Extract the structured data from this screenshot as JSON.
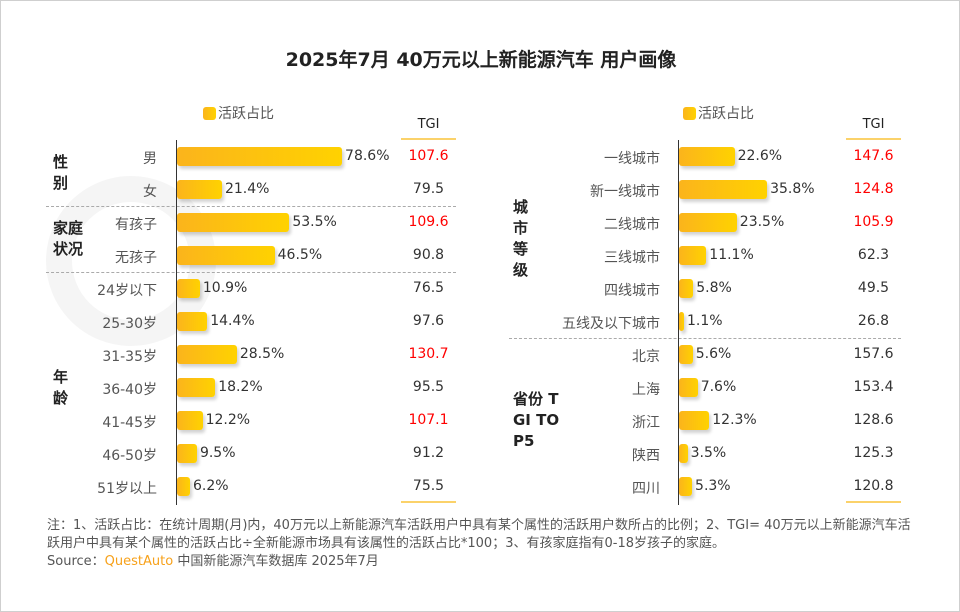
{
  "title": "2025年7月 40万元以上新能源汽车 用户画像",
  "watermark": "QUESTAUTO",
  "legend_label": "活跃占比",
  "tgi_header": "TGI",
  "colors": {
    "bar": "#fbb41c",
    "highlight": "#ff0000",
    "normal": "#333333",
    "brand": "#f7a11a"
  },
  "chart_data": [
    {
      "type": "bar",
      "orientation": "horizontal",
      "legend": "活跃占比",
      "groups": [
        {
          "label": "性别",
          "categories": [
            "男",
            "女"
          ],
          "values": [
            78.6,
            21.4
          ],
          "labels": [
            "78.6%",
            "21.4%"
          ],
          "tgi": [
            "107.6",
            "79.5"
          ],
          "tgi_highlight": [
            true,
            false
          ]
        },
        {
          "label": "家庭状况",
          "categories": [
            "有孩子",
            "无孩子"
          ],
          "values": [
            53.5,
            46.5
          ],
          "labels": [
            "53.5%",
            "46.5%"
          ],
          "tgi": [
            "109.6",
            "90.8"
          ],
          "tgi_highlight": [
            true,
            false
          ]
        },
        {
          "label": "年龄",
          "categories": [
            "24岁以下",
            "25-30岁",
            "31-35岁",
            "36-40岁",
            "41-45岁",
            "46-50岁",
            "51岁以上"
          ],
          "values": [
            10.9,
            14.4,
            28.5,
            18.2,
            12.2,
            9.5,
            6.2
          ],
          "labels": [
            "10.9%",
            "14.4%",
            "28.5%",
            "18.2%",
            "12.2%",
            "9.5%",
            "6.2%"
          ],
          "tgi": [
            "76.5",
            "97.6",
            "130.7",
            "95.5",
            "107.1",
            "91.2",
            "75.5"
          ],
          "tgi_highlight": [
            false,
            false,
            true,
            false,
            true,
            false,
            false
          ]
        }
      ]
    },
    {
      "type": "bar",
      "orientation": "horizontal",
      "legend": "活跃占比",
      "groups": [
        {
          "label": "城市等级",
          "categories": [
            "一线城市",
            "新一线城市",
            "二线城市",
            "三线城市",
            "四线城市",
            "五线及以下城市"
          ],
          "values": [
            22.6,
            35.8,
            23.5,
            11.1,
            5.8,
            1.1
          ],
          "labels": [
            "22.6%",
            "35.8%",
            "23.5%",
            "11.1%",
            "5.8%",
            "1.1%"
          ],
          "tgi": [
            "147.6",
            "124.8",
            "105.9",
            "62.3",
            "49.5",
            "26.8"
          ],
          "tgi_highlight": [
            true,
            true,
            true,
            false,
            false,
            false
          ]
        },
        {
          "label": "省份 TGI TOP5",
          "categories": [
            "北京",
            "上海",
            "浙江",
            "陕西",
            "四川"
          ],
          "values": [
            5.6,
            7.6,
            12.3,
            3.5,
            5.3
          ],
          "labels": [
            "5.6%",
            "7.6%",
            "12.3%",
            "3.5%",
            "5.3%"
          ],
          "tgi": [
            "157.6",
            "153.4",
            "128.6",
            "125.3",
            "120.8"
          ],
          "tgi_highlight": [
            false,
            false,
            false,
            false,
            false
          ]
        }
      ]
    }
  ],
  "notes": [
    "注：1、活跃占比：在统计周期(月)内，40万元以上新能源汽车活跃用户中具有某个属性的活跃用户数所占的比例；2、TGI= 40万元以上新能源汽车活跃用户中具有某个属性的活跃占比÷全新能源市场具有该属性的活跃占比*100；3、有孩家庭指有0-18岁孩子的家庭。"
  ],
  "source": {
    "prefix": "Source：",
    "brand": "QuestAuto",
    "text": " 中国新能源汽车数据库 2025年7月"
  }
}
